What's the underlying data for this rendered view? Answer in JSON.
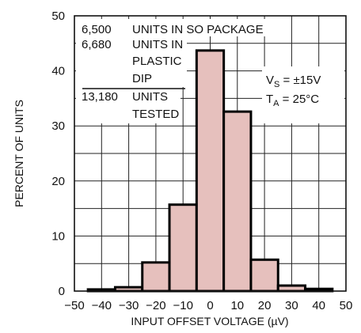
{
  "chart_data": {
    "type": "bar",
    "title": "",
    "xlabel": "INPUT OFFSET VOLTAGE (µV)",
    "ylabel": "PERCENT OF UNITS",
    "xlim": [
      -50,
      50
    ],
    "ylim": [
      0,
      50
    ],
    "grid": true,
    "bin_width": 10,
    "bins": [
      {
        "center": -40,
        "value": 0.3
      },
      {
        "center": -30,
        "value": 0.7
      },
      {
        "center": -20,
        "value": 5.2
      },
      {
        "center": -10,
        "value": 15.7
      },
      {
        "center": 0,
        "value": 43.7
      },
      {
        "center": 10,
        "value": 32.6
      },
      {
        "center": 20,
        "value": 5.7
      },
      {
        "center": 30,
        "value": 1.0
      },
      {
        "center": 40,
        "value": 0.4
      }
    ],
    "xticks": [
      "−50",
      "−40",
      "−30",
      "−20",
      "−10",
      "0",
      "10",
      "20",
      "30",
      "40",
      "50"
    ],
    "yticks": [
      "0",
      "10",
      "20",
      "30",
      "40",
      "50"
    ],
    "bar_fill": "#e6c0bd",
    "bar_stroke": "#000000",
    "annotations": {
      "row1_count": "6,500",
      "row1_text": "UNITS IN SO PACKAGE",
      "row2_count": "6,680",
      "row2_text_line1": "UNITS IN",
      "row2_text_line2": "PLASTIC",
      "row2_text_line3": "DIP",
      "total_count": "13,180",
      "total_text_line1": "UNITS",
      "total_text_line2": "TESTED",
      "vs_symbol": "V",
      "vs_sub": "S",
      "vs_value": " = ±15V",
      "ta_symbol": "T",
      "ta_sub": "A",
      "ta_value": " = 25°C"
    }
  }
}
